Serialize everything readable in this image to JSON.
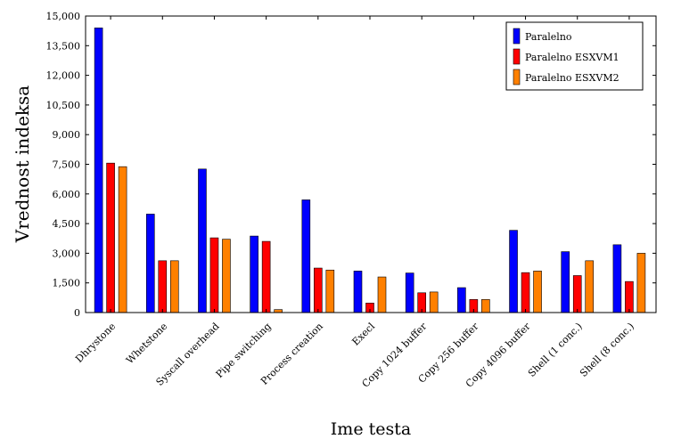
{
  "chart_data": {
    "type": "bar",
    "xlabel": "Ime testa",
    "ylabel": "Vrednost indeksa",
    "ylim": [
      0,
      15000
    ],
    "yticks": [
      0,
      1500,
      3000,
      4500,
      6000,
      7500,
      9000,
      10500,
      12000,
      13500,
      15000
    ],
    "ytick_labels": [
      "0",
      "1,500",
      "3,000",
      "4,500",
      "6,000",
      "7,500",
      "9,000",
      "10,500",
      "12,000",
      "13,500",
      "15,000"
    ],
    "grid": false,
    "legend_position": "top-right",
    "categories": [
      "Dhrystone",
      "Whetstone",
      "Syscall overhead",
      "Pipe switching",
      "Process creation",
      "Execl",
      "Copy 1024 buffer",
      "Copy 256 buffer",
      "Copy 4096 buffer",
      "Shell (1 conc.)",
      "Shell (8 conc.)"
    ],
    "series": [
      {
        "name": "Paralelno",
        "color": "#0000ff",
        "values": [
          14400,
          4980,
          7260,
          3870,
          5700,
          2100,
          2000,
          1260,
          4160,
          3080,
          3430
        ]
      },
      {
        "name": "Paralelno ESXVM1",
        "color": "#ff0000",
        "values": [
          7560,
          2620,
          3780,
          3600,
          2250,
          480,
          1000,
          660,
          2020,
          1870,
          1570
        ]
      },
      {
        "name": "Paralelno ESXVM2",
        "color": "#ff8000",
        "values": [
          7380,
          2620,
          3710,
          150,
          2150,
          1800,
          1040,
          660,
          2100,
          2620,
          3000
        ]
      }
    ]
  }
}
